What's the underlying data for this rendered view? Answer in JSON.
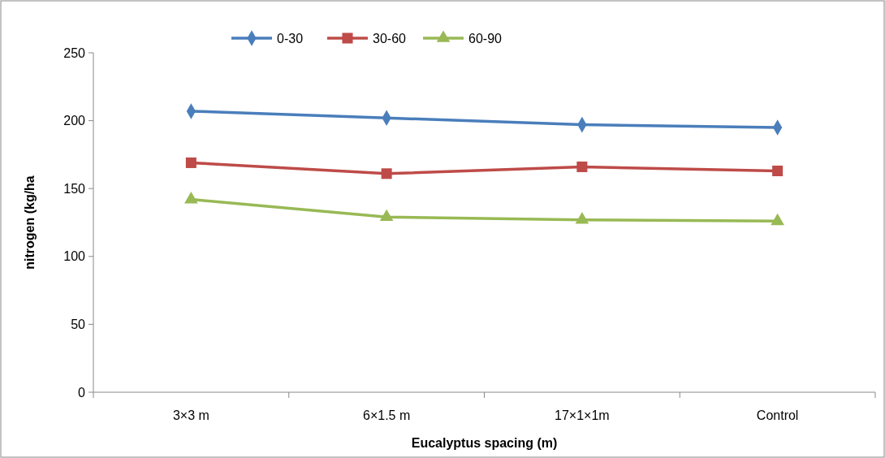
{
  "chart_data": {
    "type": "line",
    "xlabel": "Eucalyptus spacing (m)",
    "ylabel": "nitrogen (kg/ha",
    "categories": [
      "3×3 m",
      "6×1.5 m",
      "17×1×1m",
      "Control"
    ],
    "ylim": [
      0,
      250
    ],
    "yticks": [
      0,
      50,
      100,
      150,
      200,
      250
    ],
    "grid": false,
    "legend": "top",
    "line_style": "solid",
    "series": [
      {
        "name": "0-30",
        "color": "#4a7ebb",
        "marker": "diamond",
        "values": [
          207,
          202,
          197,
          195
        ]
      },
      {
        "name": "30-60",
        "color": "#be4b48",
        "marker": "square",
        "values": [
          169,
          161,
          166,
          163
        ]
      },
      {
        "name": "60-90",
        "color": "#98b954",
        "marker": "triangle",
        "values": [
          142,
          129,
          127,
          126
        ]
      }
    ]
  }
}
